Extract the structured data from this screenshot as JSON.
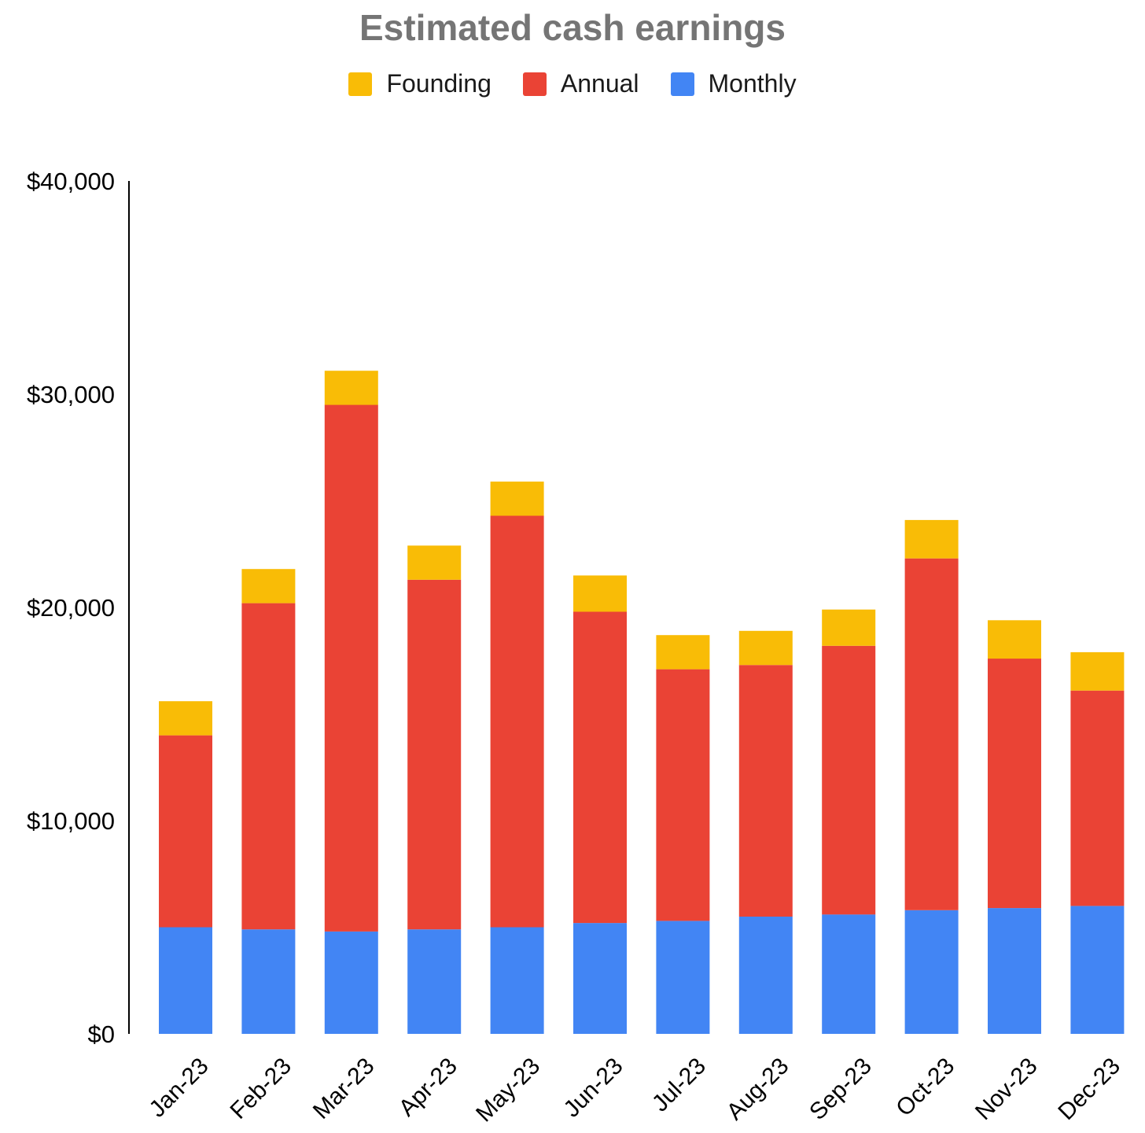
{
  "colors": {
    "founding": "#F9BC06",
    "annual": "#EA4335",
    "monthly": "#4285F4",
    "title": "#757575",
    "axis": "#000000"
  },
  "chart_data": {
    "type": "bar",
    "stacked": true,
    "title": "Estimated cash earnings",
    "xlabel": "",
    "ylabel": "",
    "ylim": [
      0,
      40000
    ],
    "yticks": [
      0,
      10000,
      20000,
      30000,
      40000
    ],
    "ytick_labels": [
      "$0",
      "$10,000",
      "$20,000",
      "$30,000",
      "$40,000"
    ],
    "legend_position": "top",
    "grid": false,
    "categories": [
      "Jan-23",
      "Feb-23",
      "Mar-23",
      "Apr-23",
      "May-23",
      "Jun-23",
      "Jul-23",
      "Aug-23",
      "Sep-23",
      "Oct-23",
      "Nov-23",
      "Dec-23"
    ],
    "series": [
      {
        "name": "Monthly",
        "color": "#4285F4",
        "values": [
          5000,
          4900,
          4800,
          4900,
          5000,
          5200,
          5300,
          5500,
          5600,
          5800,
          5900,
          6000
        ]
      },
      {
        "name": "Annual",
        "color": "#EA4335",
        "values": [
          9000,
          15300,
          24700,
          16400,
          19300,
          14600,
          11800,
          11800,
          12600,
          16500,
          11700,
          10100
        ]
      },
      {
        "name": "Founding",
        "color": "#F9BC06",
        "values": [
          1600,
          1600,
          1600,
          1600,
          1600,
          1700,
          1600,
          1600,
          1700,
          1800,
          1800,
          1800
        ]
      }
    ],
    "legend_order": [
      "Founding",
      "Annual",
      "Monthly"
    ]
  }
}
